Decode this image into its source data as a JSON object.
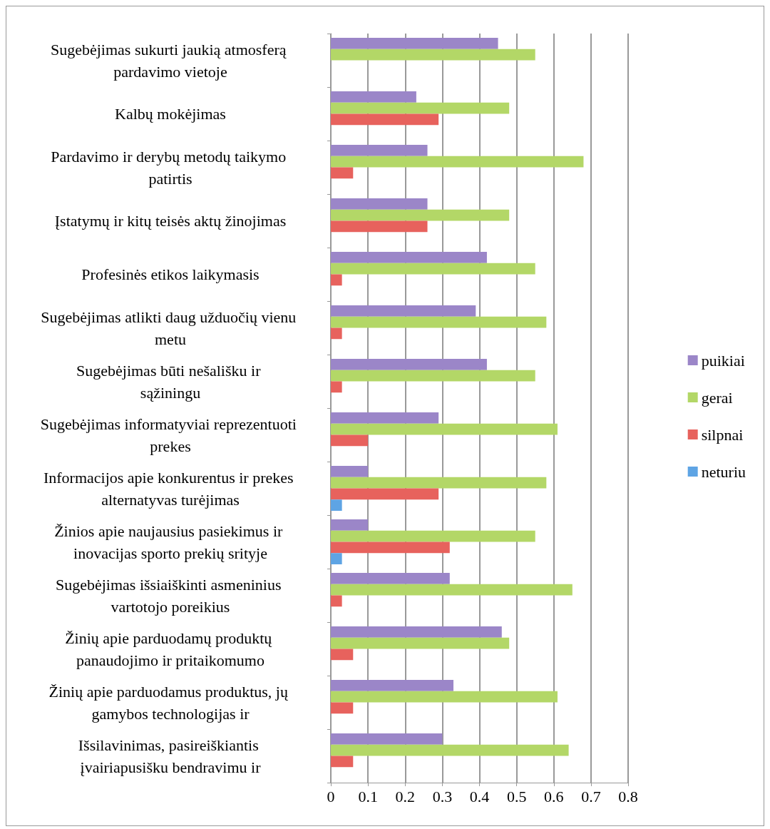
{
  "chart_data": {
    "type": "bar",
    "orientation": "horizontal",
    "categories": [
      "Sugebėjimas sukurti jaukią atmosferą pardavimo vietoje",
      "Kalbų mokėjimas",
      "Pardavimo ir derybų metodų taikymo patirtis",
      "Įstatymų ir kitų teisės aktų žinojimas",
      "Profesinės etikos laikymasis",
      "Sugebėjimas atlikti daug užduočių vienu metu",
      "Sugebėjimas būti nešališku ir sąžiningu",
      "Sugebėjimas informatyviai reprezentuoti prekes",
      "Informacijos apie konkurentus ir prekes alternatyvas turėjimas",
      "Žinios apie naujausius pasiekimus ir inovacijas sporto prekių srityje",
      "Sugebėjimas išsiaiškinti asmeninius vartotojo poreikius",
      "Žinių apie parduodamų produktų panaudojimo ir pritaikomumo",
      "Žinių apie parduodamus produktus, jų gamybos technologijas ir",
      "Išsilavinimas, pasireiškiantis įvairiapusišku bendravimu ir"
    ],
    "series": [
      {
        "name": "puikiai",
        "color": "#9b86c8",
        "values": [
          0.45,
          0.23,
          0.26,
          0.26,
          0.42,
          0.39,
          0.42,
          0.29,
          0.1,
          0.1,
          0.32,
          0.46,
          0.33,
          0.3
        ]
      },
      {
        "name": "gerai",
        "color": "#b3d767",
        "values": [
          0.55,
          0.48,
          0.68,
          0.48,
          0.55,
          0.58,
          0.55,
          0.61,
          0.58,
          0.55,
          0.65,
          0.48,
          0.61,
          0.64
        ]
      },
      {
        "name": "silpnai",
        "color": "#e7625d",
        "values": [
          null,
          0.29,
          0.06,
          0.26,
          0.03,
          0.03,
          0.03,
          0.1,
          0.29,
          0.32,
          0.03,
          0.06,
          0.06,
          0.06
        ]
      },
      {
        "name": "neturiu",
        "color": "#5ea4e4",
        "values": [
          null,
          null,
          null,
          null,
          null,
          null,
          null,
          null,
          0.03,
          0.03,
          null,
          null,
          null,
          null
        ]
      }
    ],
    "xlim": [
      0,
      0.8
    ],
    "xticks": [
      0,
      0.1,
      0.2,
      0.3,
      0.4,
      0.5,
      0.6,
      0.7,
      0.8
    ],
    "grid": "x",
    "legend": "right"
  }
}
